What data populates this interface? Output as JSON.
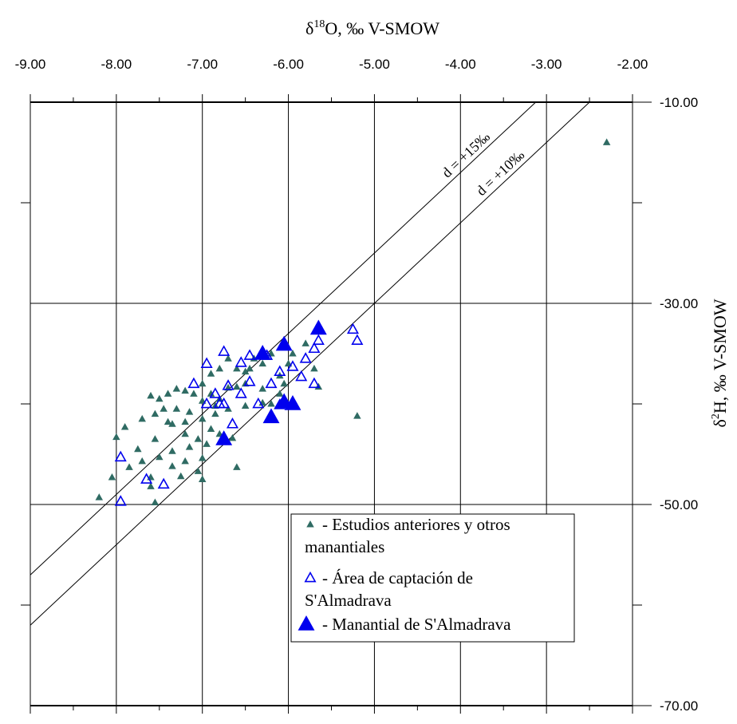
{
  "chart_data": {
    "type": "scatter",
    "xlabel": "δ18O, ‰ V-SMOW",
    "ylabel": "δ2H, ‰ V-SMOW",
    "xlim": [
      -9.0,
      -2.0
    ],
    "ylim": [
      -70.0,
      -10.0
    ],
    "x_ticks": [
      "-9.00",
      "-8.00",
      "-7.00",
      "-6.00",
      "-5.00",
      "-4.00",
      "-3.00",
      "-2.00"
    ],
    "y_ticks": [
      "-10.00",
      "-30.00",
      "-50.00",
      "-70.00"
    ],
    "grid": true,
    "legend_position": "lower-right",
    "reference_lines": [
      {
        "label": "d = +15‰",
        "slope": 8,
        "intercept": 15
      },
      {
        "label": "d = +10‰",
        "slope": 8,
        "intercept": 10
      }
    ],
    "series": [
      {
        "name": "- Estudios anteriores y otros manantiales",
        "marker": "small-filled-triangle",
        "color": "#2f6b63",
        "points": [
          [
            -2.3,
            -14.0
          ],
          [
            -5.2,
            -41.2
          ],
          [
            -5.65,
            -38.3
          ],
          [
            -5.7,
            -36.5
          ],
          [
            -5.8,
            -34.0
          ],
          [
            -5.95,
            -35.0
          ],
          [
            -6.0,
            -36.0
          ],
          [
            -6.1,
            -37.2
          ],
          [
            -6.2,
            -35.0
          ],
          [
            -6.3,
            -36.0
          ],
          [
            -6.4,
            -35.5
          ],
          [
            -6.5,
            -36.8
          ],
          [
            -6.6,
            -36.5
          ],
          [
            -6.7,
            -35.5
          ],
          [
            -6.8,
            -36.5
          ],
          [
            -6.9,
            -37.0
          ],
          [
            -7.0,
            -38.0
          ],
          [
            -6.3,
            -38.5
          ],
          [
            -6.5,
            -38.0
          ],
          [
            -6.7,
            -38.4
          ],
          [
            -6.9,
            -39.0
          ],
          [
            -7.0,
            -39.7
          ],
          [
            -7.1,
            -39.0
          ],
          [
            -7.2,
            -38.7
          ],
          [
            -7.3,
            -38.5
          ],
          [
            -7.4,
            -39.0
          ],
          [
            -7.5,
            -39.5
          ],
          [
            -7.6,
            -39.2
          ],
          [
            -7.3,
            -40.5
          ],
          [
            -7.45,
            -40.5
          ],
          [
            -7.55,
            -41.0
          ],
          [
            -7.7,
            -41.5
          ],
          [
            -7.9,
            -42.3
          ],
          [
            -8.0,
            -43.3
          ],
          [
            -7.75,
            -44.5
          ],
          [
            -7.55,
            -43.5
          ],
          [
            -7.35,
            -42.0
          ],
          [
            -7.2,
            -41.8
          ],
          [
            -7.0,
            -41.5
          ],
          [
            -6.85,
            -41.0
          ],
          [
            -6.7,
            -40.5
          ],
          [
            -6.5,
            -40.2
          ],
          [
            -6.3,
            -39.9
          ],
          [
            -6.1,
            -39.0
          ],
          [
            -6.9,
            -42.5
          ],
          [
            -7.05,
            -43.5
          ],
          [
            -7.15,
            -44.3
          ],
          [
            -7.35,
            -44.7
          ],
          [
            -7.5,
            -45.3
          ],
          [
            -7.7,
            -45.7
          ],
          [
            -7.85,
            -46.3
          ],
          [
            -8.05,
            -47.3
          ],
          [
            -8.2,
            -49.3
          ],
          [
            -7.6,
            -47.3
          ],
          [
            -7.35,
            -46.2
          ],
          [
            -7.2,
            -45.7
          ],
          [
            -7.0,
            -45.4
          ],
          [
            -7.05,
            -46.7
          ],
          [
            -7.25,
            -47.2
          ],
          [
            -7.6,
            -48.2
          ],
          [
            -7.55,
            -49.8
          ],
          [
            -7.0,
            -47.5
          ],
          [
            -6.6,
            -46.3
          ],
          [
            -6.65,
            -43.4
          ],
          [
            -6.8,
            -43.0
          ],
          [
            -6.6,
            -38.3
          ],
          [
            -6.2,
            -40.0
          ],
          [
            -6.05,
            -38.0
          ],
          [
            -6.45,
            -36.5
          ],
          [
            -6.8,
            -39.5
          ],
          [
            -7.2,
            -43.0
          ],
          [
            -6.95,
            -44.0
          ],
          [
            -7.4,
            -41.8
          ],
          [
            -7.15,
            -40.8
          ],
          [
            -6.85,
            -40.2
          ]
        ]
      },
      {
        "name": "- Área de captación de S'Almadrava",
        "marker": "open-triangle",
        "color": "#0000ee",
        "points": [
          [
            -5.25,
            -32.6
          ],
          [
            -5.2,
            -33.7
          ],
          [
            -5.65,
            -33.7
          ],
          [
            -5.7,
            -34.5
          ],
          [
            -5.8,
            -35.5
          ],
          [
            -5.95,
            -36.3
          ],
          [
            -6.1,
            -36.8
          ],
          [
            -6.25,
            -35.2
          ],
          [
            -6.45,
            -35.2
          ],
          [
            -6.55,
            -35.9
          ],
          [
            -6.75,
            -34.8
          ],
          [
            -6.95,
            -36.0
          ],
          [
            -5.85,
            -37.3
          ],
          [
            -6.2,
            -38.0
          ],
          [
            -6.45,
            -37.8
          ],
          [
            -6.7,
            -38.2
          ],
          [
            -6.85,
            -39.0
          ],
          [
            -6.95,
            -40.0
          ],
          [
            -7.1,
            -38.0
          ],
          [
            -6.35,
            -40.0
          ],
          [
            -6.55,
            -39.0
          ],
          [
            -6.8,
            -40.0
          ],
          [
            -6.65,
            -42.0
          ],
          [
            -7.95,
            -45.3
          ],
          [
            -7.95,
            -49.7
          ],
          [
            -7.65,
            -47.5
          ],
          [
            -7.45,
            -48.0
          ],
          [
            -5.7,
            -38.0
          ],
          [
            -6.1,
            -40.1
          ],
          [
            -6.75,
            -40.0
          ]
        ]
      },
      {
        "name": "- Manantial de S'Almadrava",
        "marker": "large-filled-triangle",
        "color": "#0000ee",
        "points": [
          [
            -5.65,
            -32.5
          ],
          [
            -6.05,
            -34.1
          ],
          [
            -6.3,
            -35.0
          ],
          [
            -6.05,
            -39.8
          ],
          [
            -5.95,
            -40.0
          ],
          [
            -6.2,
            -41.3
          ],
          [
            -6.75,
            -43.5
          ]
        ]
      }
    ]
  }
}
